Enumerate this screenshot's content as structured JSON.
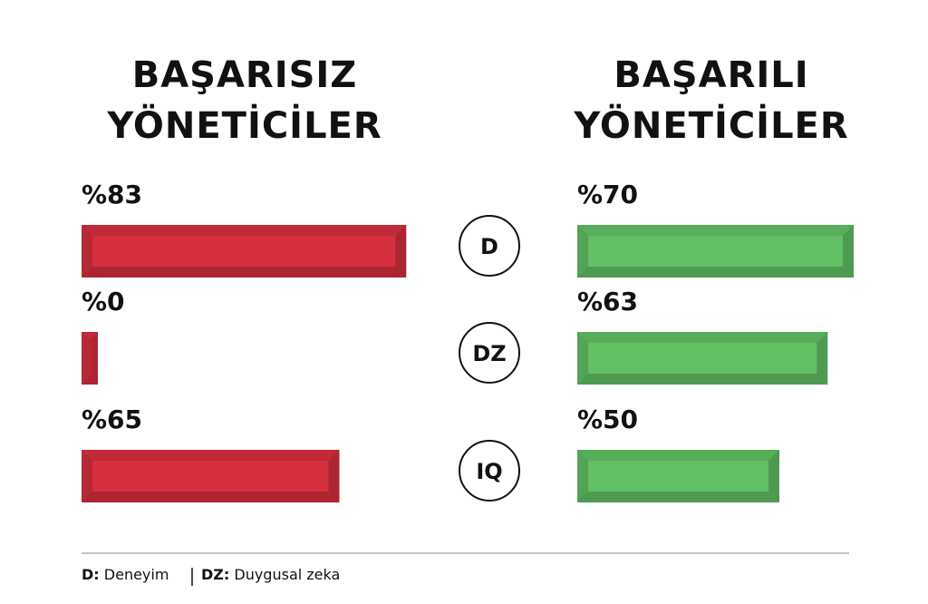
{
  "chart_data": {
    "type": "bar",
    "categories": [
      "D",
      "DZ",
      "IQ"
    ],
    "series": [
      {
        "name": "BAŞARISIZ\nYÖNETİCİLER",
        "color": "#d62f3d",
        "values": [
          83,
          0,
          65
        ],
        "value_labels": [
          "%83",
          "%0",
          "%65"
        ]
      },
      {
        "name": "BAŞARILI\nYÖNETİCİLER",
        "color": "#62c064",
        "values": [
          70,
          63,
          50
        ],
        "value_labels": [
          "%70",
          "%63",
          "%50"
        ]
      }
    ],
    "notes": [
      {
        "key": "D:",
        "text": "Deneyim"
      },
      {
        "key": "DZ:",
        "text": "Duygusal zeka"
      }
    ]
  }
}
